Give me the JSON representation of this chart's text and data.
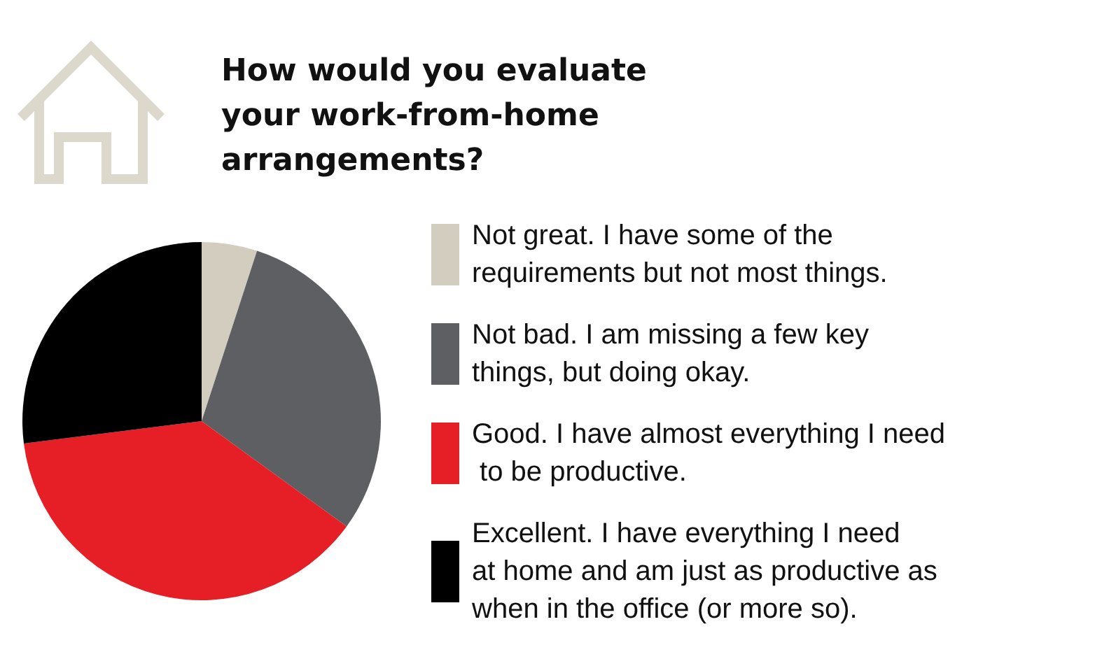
{
  "chart_data": {
    "type": "pie",
    "title": "How would you evaluate your work-from-home arrangements?",
    "categories": [
      "Not great. I have some of the requirements but not most things.",
      "Not bad. I am missing a few key things, but doing okay.",
      "Good. I have almost everything I need to be productive.",
      "Excellent. I have everything I need at home and am just as productive as when in the office (or more so)."
    ],
    "values": [
      5,
      30,
      38,
      27
    ],
    "colors": [
      "#d2cdbf",
      "#5e5f63",
      "#e61e25",
      "#000000"
    ],
    "legend": "right"
  }
}
